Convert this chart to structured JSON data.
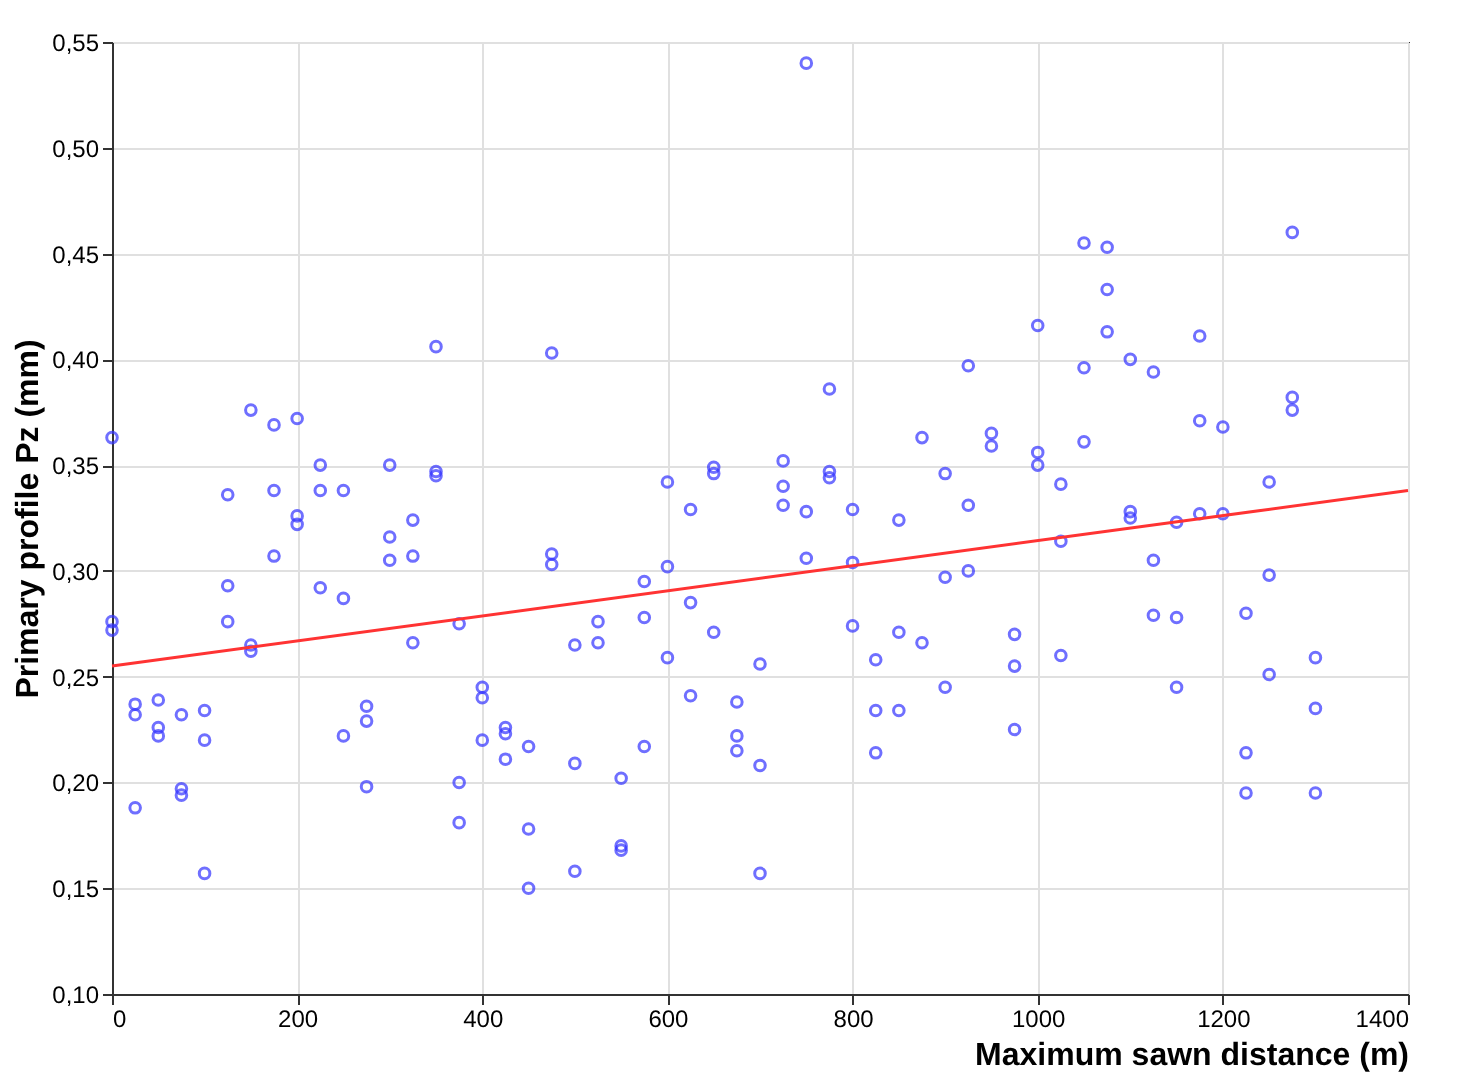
{
  "chart_data": {
    "type": "scatter",
    "xlabel": "Maximum sawn distance (m)",
    "ylabel": "Primary profile Pz (mm)",
    "xlim": [
      0,
      1400
    ],
    "xticks": [
      0,
      200,
      400,
      600,
      800,
      1000,
      1200,
      1400
    ],
    "ylim": [
      0.1,
      0.55
    ],
    "yticks": [
      {
        "value": 0.1,
        "label": "0,10"
      },
      {
        "value": 0.15,
        "label": "0,15"
      },
      {
        "value": 0.2,
        "label": "0,20"
      },
      {
        "value": 0.25,
        "label": "0,25"
      },
      {
        "value": 0.3,
        "label": "0,30"
      },
      {
        "value": 0.35,
        "label": "0,35"
      },
      {
        "value": 0.4,
        "label": "0,40"
      },
      {
        "value": 0.45,
        "label": "0,45"
      },
      {
        "value": 0.5,
        "label": "0,50"
      },
      {
        "value": 0.55,
        "label": "0,55"
      }
    ],
    "grid": true,
    "series": [
      {
        "color": "#3333ff",
        "marker": "circle",
        "x": [
          0,
          0,
          0,
          25,
          25,
          25,
          50,
          50,
          50,
          75,
          75,
          75,
          100,
          100,
          100,
          125,
          125,
          125,
          150,
          150,
          150,
          175,
          175,
          175,
          200,
          200,
          200,
          225,
          225,
          225,
          250,
          250,
          250,
          275,
          275,
          275,
          300,
          300,
          300,
          325,
          325,
          325,
          350,
          350,
          350,
          375,
          375,
          375,
          400,
          400,
          400,
          425,
          425,
          425,
          450,
          450,
          450,
          475,
          475,
          475,
          500,
          500,
          500,
          525,
          525,
          550,
          550,
          550,
          575,
          575,
          575,
          600,
          600,
          600,
          625,
          625,
          625,
          650,
          650,
          650,
          675,
          675,
          675,
          700,
          700,
          700,
          725,
          725,
          725,
          750,
          750,
          750,
          775,
          775,
          775,
          800,
          800,
          800,
          825,
          825,
          825,
          850,
          850,
          850,
          875,
          875,
          900,
          900,
          900,
          925,
          925,
          925,
          950,
          950,
          975,
          975,
          975,
          1000,
          1000,
          1000,
          1025,
          1025,
          1025,
          1050,
          1050,
          1050,
          1075,
          1075,
          1075,
          1100,
          1100,
          1100,
          1125,
          1125,
          1125,
          1150,
          1150,
          1150,
          1175,
          1175,
          1175,
          1200,
          1200,
          1225,
          1225,
          1225,
          1250,
          1250,
          1250,
          1275,
          1275,
          1275,
          1300,
          1300,
          1300
        ],
        "values": [
          0.363,
          0.276,
          0.272,
          0.237,
          0.232,
          0.188,
          0.239,
          0.226,
          0.222,
          0.232,
          0.197,
          0.194,
          0.234,
          0.22,
          0.157,
          0.336,
          0.293,
          0.276,
          0.376,
          0.265,
          0.262,
          0.369,
          0.338,
          0.307,
          0.372,
          0.326,
          0.322,
          0.35,
          0.338,
          0.292,
          0.338,
          0.287,
          0.222,
          0.236,
          0.229,
          0.198,
          0.35,
          0.316,
          0.305,
          0.324,
          0.307,
          0.266,
          0.406,
          0.347,
          0.345,
          0.275,
          0.2,
          0.181,
          0.245,
          0.24,
          0.22,
          0.226,
          0.223,
          0.211,
          0.217,
          0.178,
          0.15,
          0.403,
          0.308,
          0.303,
          0.265,
          0.209,
          0.158,
          0.276,
          0.266,
          0.202,
          0.17,
          0.168,
          0.295,
          0.278,
          0.217,
          0.342,
          0.302,
          0.259,
          0.329,
          0.285,
          0.241,
          0.349,
          0.346,
          0.271,
          0.238,
          0.222,
          0.215,
          0.256,
          0.208,
          0.157,
          0.352,
          0.34,
          0.331,
          0.54,
          0.328,
          0.306,
          0.386,
          0.347,
          0.344,
          0.329,
          0.304,
          0.274,
          0.258,
          0.234,
          0.214,
          0.324,
          0.271,
          0.234,
          0.363,
          0.266,
          0.346,
          0.297,
          0.245,
          0.397,
          0.331,
          0.3,
          0.365,
          0.359,
          0.27,
          0.255,
          0.225,
          0.416,
          0.356,
          0.35,
          0.341,
          0.314,
          0.26,
          0.455,
          0.396,
          0.361,
          0.453,
          0.433,
          0.413,
          0.4,
          0.328,
          0.325,
          0.394,
          0.305,
          0.279,
          0.323,
          0.278,
          0.245,
          0.411,
          0.371,
          0.327,
          0.368,
          0.327,
          0.28,
          0.214,
          0.195,
          0.342,
          0.298,
          0.251,
          0.46,
          0.382,
          0.376,
          0.259,
          0.235,
          0.195
        ]
      },
      {
        "type": "line",
        "marker": "none",
        "color": "#ff3333",
        "x": [
          0,
          1400
        ],
        "values": [
          0.255,
          0.338
        ]
      }
    ]
  }
}
